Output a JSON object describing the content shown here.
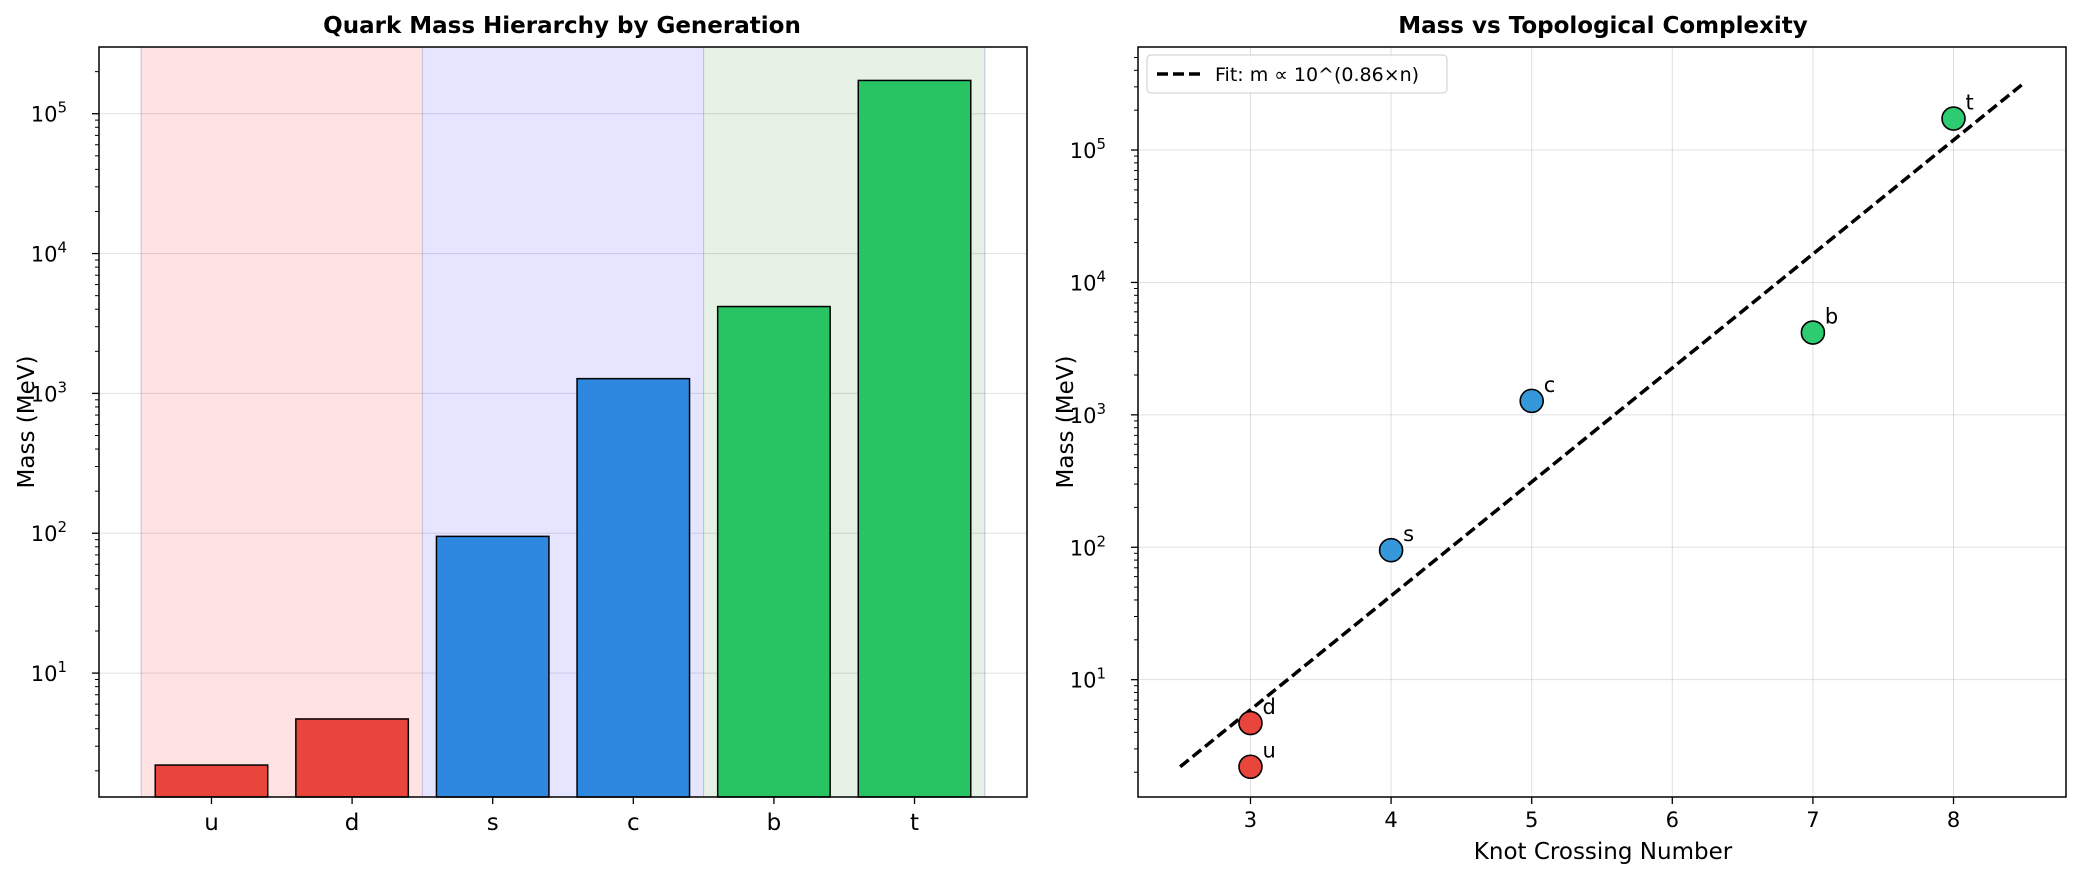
{
  "chart_data": [
    {
      "type": "bar",
      "title": "Quark Mass Hierarchy by Generation",
      "xlabel": "",
      "ylabel": "Mass (MeV)",
      "yscale": "log",
      "ylim": [
        1.3,
        300000
      ],
      "categories": [
        "u",
        "d",
        "s",
        "c",
        "b",
        "t"
      ],
      "values": [
        2.2,
        4.7,
        95,
        1275,
        4180,
        173000
      ],
      "bar_colors": [
        "#e8453c",
        "#e8453c",
        "#2e88e0",
        "#2e88e0",
        "#28c463",
        "#28c463"
      ],
      "generation_bands": [
        {
          "from": "u",
          "to": "d",
          "color": "#ffe3e3"
        },
        {
          "from": "s",
          "to": "c",
          "color": "#e5e5ff"
        },
        {
          "from": "b",
          "to": "t",
          "color": "#e5f2e5"
        }
      ],
      "yticks": [
        {
          "value": 10,
          "base": "10",
          "exp": "1"
        },
        {
          "value": 100,
          "base": "10",
          "exp": "2"
        },
        {
          "value": 1000,
          "base": "10",
          "exp": "3"
        },
        {
          "value": 10000,
          "base": "10",
          "exp": "4"
        },
        {
          "value": 100000,
          "base": "10",
          "exp": "5"
        }
      ],
      "grid": true
    },
    {
      "type": "scatter",
      "title": "Mass vs Topological Complexity",
      "xlabel": "Knot Crossing Number",
      "ylabel": "Mass (MeV)",
      "yscale": "log",
      "xlim": [
        2.2,
        8.8
      ],
      "ylim": [
        1.3,
        600000
      ],
      "xticks": [
        "3",
        "4",
        "5",
        "6",
        "7",
        "8"
      ],
      "yticks": [
        {
          "value": 10,
          "base": "10",
          "exp": "1"
        },
        {
          "value": 100,
          "base": "10",
          "exp": "2"
        },
        {
          "value": 1000,
          "base": "10",
          "exp": "3"
        },
        {
          "value": 10000,
          "base": "10",
          "exp": "4"
        },
        {
          "value": 100000,
          "base": "10",
          "exp": "5"
        }
      ],
      "points": [
        {
          "label": "u",
          "x": 3,
          "y": 2.2,
          "color": "#e8453c"
        },
        {
          "label": "d",
          "x": 3,
          "y": 4.7,
          "color": "#e8453c"
        },
        {
          "label": "s",
          "x": 4,
          "y": 95,
          "color": "#3598db"
        },
        {
          "label": "c",
          "x": 5,
          "y": 1275,
          "color": "#3598db"
        },
        {
          "label": "b",
          "x": 7,
          "y": 4180,
          "color": "#2ecc71"
        },
        {
          "label": "t",
          "x": 8,
          "y": 173000,
          "color": "#2ecc71"
        }
      ],
      "fit_line": {
        "name": "Fit: m ∝ 10^(0.86×n)",
        "x": [
          2.5,
          8.5
        ],
        "y": [
          2.2,
          320000
        ]
      },
      "legend_position": "top-left",
      "grid": true
    }
  ]
}
